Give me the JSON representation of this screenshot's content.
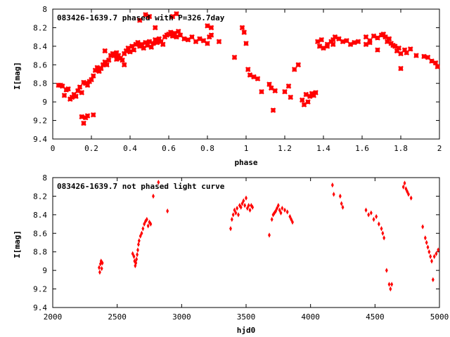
{
  "chart_data": [
    {
      "type": "scatter",
      "title": "083426-1639.7 phased with P=326.7day",
      "xlabel": "phase",
      "ylabel": "I[mag]",
      "xlim": [
        0,
        2
      ],
      "ylim": [
        9.4,
        8
      ],
      "y_inverted": true,
      "x_ticks": [
        "0",
        "0.2",
        "0.4",
        "0.6",
        "0.8",
        "1",
        "1.2",
        "1.4",
        "1.6",
        "1.8",
        "2"
      ],
      "y_ticks": [
        "8",
        "8.2",
        "8.4",
        "8.6",
        "8.8",
        "9",
        "9.2",
        "9.4"
      ],
      "marker": "cross",
      "color": "#ff0000",
      "points": [
        [
          0.03,
          8.82
        ],
        [
          0.04,
          8.82
        ],
        [
          0.05,
          8.83
        ],
        [
          0.06,
          8.93
        ],
        [
          0.07,
          8.87
        ],
        [
          0.08,
          8.86
        ],
        [
          0.09,
          8.97
        ],
        [
          0.1,
          8.95
        ],
        [
          0.11,
          8.92
        ],
        [
          0.12,
          8.94
        ],
        [
          0.13,
          8.88
        ],
        [
          0.14,
          8.84
        ],
        [
          0.15,
          8.9
        ],
        [
          0.16,
          8.79
        ],
        [
          0.17,
          8.8
        ],
        [
          0.18,
          8.82
        ],
        [
          0.19,
          8.78
        ],
        [
          0.2,
          8.76
        ],
        [
          0.21,
          8.72
        ],
        [
          0.22,
          8.66
        ],
        [
          0.23,
          8.63
        ],
        [
          0.24,
          8.67
        ],
        [
          0.25,
          8.64
        ],
        [
          0.26,
          8.6
        ],
        [
          0.27,
          8.57
        ],
        [
          0.28,
          8.6
        ],
        [
          0.29,
          8.55
        ],
        [
          0.3,
          8.5
        ],
        [
          0.31,
          8.48
        ],
        [
          0.32,
          8.5
        ],
        [
          0.33,
          8.47
        ],
        [
          0.34,
          8.5
        ],
        [
          0.35,
          8.53
        ],
        [
          0.36,
          8.55
        ],
        [
          0.37,
          8.48
        ],
        [
          0.38,
          8.45
        ],
        [
          0.39,
          8.42
        ],
        [
          0.4,
          8.46
        ],
        [
          0.41,
          8.4
        ],
        [
          0.42,
          8.44
        ],
        [
          0.43,
          8.38
        ],
        [
          0.44,
          8.36
        ],
        [
          0.45,
          8.4
        ],
        [
          0.46,
          8.38
        ],
        [
          0.47,
          8.42
        ],
        [
          0.48,
          8.36
        ],
        [
          0.49,
          8.39
        ],
        [
          0.5,
          8.35
        ],
        [
          0.51,
          8.41
        ],
        [
          0.52,
          8.37
        ],
        [
          0.53,
          8.33
        ],
        [
          0.54,
          8.36
        ],
        [
          0.55,
          8.32
        ],
        [
          0.56,
          8.35
        ],
        [
          0.57,
          8.38
        ],
        [
          0.58,
          8.3
        ],
        [
          0.59,
          8.28
        ],
        [
          0.6,
          8.27
        ],
        [
          0.61,
          8.25
        ],
        [
          0.62,
          8.29
        ],
        [
          0.63,
          8.26
        ],
        [
          0.64,
          8.3
        ],
        [
          0.65,
          8.24
        ],
        [
          0.66,
          8.28
        ],
        [
          0.68,
          8.32
        ],
        [
          0.7,
          8.33
        ],
        [
          0.72,
          8.3
        ],
        [
          0.74,
          8.35
        ],
        [
          0.76,
          8.32
        ],
        [
          0.78,
          8.34
        ],
        [
          0.8,
          8.37
        ],
        [
          0.81,
          8.3
        ],
        [
          0.82,
          8.28
        ],
        [
          0.86,
          8.35
        ],
        [
          0.45,
          8.12
        ],
        [
          0.48,
          8.06
        ],
        [
          0.5,
          8.08
        ],
        [
          0.53,
          8.2
        ],
        [
          0.62,
          8.08
        ],
        [
          0.64,
          8.05
        ],
        [
          0.8,
          8.18
        ],
        [
          0.82,
          8.2
        ],
        [
          0.15,
          9.16
        ],
        [
          0.16,
          9.23
        ],
        [
          0.17,
          9.17
        ],
        [
          0.18,
          9.15
        ],
        [
          0.21,
          9.14
        ],
        [
          0.27,
          8.45
        ],
        [
          0.33,
          8.54
        ],
        [
          0.37,
          8.6
        ],
        [
          0.94,
          8.52
        ],
        [
          0.98,
          8.2
        ],
        [
          0.99,
          8.25
        ],
        [
          1.0,
          8.37
        ],
        [
          1.01,
          8.65
        ],
        [
          1.02,
          8.71
        ],
        [
          1.04,
          8.73
        ],
        [
          1.06,
          8.75
        ],
        [
          1.08,
          8.89
        ],
        [
          1.12,
          8.81
        ],
        [
          1.13,
          8.85
        ],
        [
          1.14,
          9.09
        ],
        [
          1.15,
          8.88
        ],
        [
          1.2,
          8.89
        ],
        [
          1.22,
          8.83
        ],
        [
          1.23,
          8.95
        ],
        [
          1.25,
          8.65
        ],
        [
          1.27,
          8.6
        ],
        [
          1.29,
          8.98
        ],
        [
          1.3,
          9.03
        ],
        [
          1.31,
          8.92
        ],
        [
          1.32,
          9.0
        ],
        [
          1.33,
          8.94
        ],
        [
          1.34,
          8.91
        ],
        [
          1.35,
          8.93
        ],
        [
          1.36,
          8.9
        ],
        [
          1.37,
          8.35
        ],
        [
          1.38,
          8.4
        ],
        [
          1.39,
          8.33
        ],
        [
          1.4,
          8.42
        ],
        [
          1.42,
          8.38
        ],
        [
          1.44,
          8.35
        ],
        [
          1.45,
          8.33
        ],
        [
          1.46,
          8.3
        ],
        [
          1.48,
          8.32
        ],
        [
          1.5,
          8.35
        ],
        [
          1.52,
          8.34
        ],
        [
          1.54,
          8.38
        ],
        [
          1.56,
          8.36
        ],
        [
          1.58,
          8.35
        ],
        [
          1.62,
          8.3
        ],
        [
          1.64,
          8.34
        ],
        [
          1.66,
          8.29
        ],
        [
          1.68,
          8.31
        ],
        [
          1.7,
          8.28
        ],
        [
          1.71,
          8.27
        ],
        [
          1.72,
          8.3
        ],
        [
          1.73,
          8.35
        ],
        [
          1.74,
          8.32
        ],
        [
          1.75,
          8.37
        ],
        [
          1.77,
          8.4
        ],
        [
          1.78,
          8.45
        ],
        [
          1.79,
          8.42
        ],
        [
          1.8,
          8.48
        ],
        [
          1.82,
          8.44
        ],
        [
          1.83,
          8.47
        ],
        [
          1.85,
          8.43
        ],
        [
          1.88,
          8.5
        ],
        [
          1.92,
          8.51
        ],
        [
          1.94,
          8.52
        ],
        [
          1.96,
          8.56
        ],
        [
          1.98,
          8.58
        ],
        [
          1.99,
          8.62
        ],
        [
          1.62,
          8.38
        ],
        [
          1.64,
          8.36
        ],
        [
          1.68,
          8.44
        ],
        [
          1.76,
          8.39
        ],
        [
          1.8,
          8.64
        ],
        [
          1.42,
          8.4
        ],
        [
          1.45,
          8.38
        ]
      ]
    },
    {
      "type": "scatter",
      "title": "083426-1639.7 not phased light curve",
      "xlabel": "hjd0",
      "ylabel": "I[mag]",
      "xlim": [
        2000,
        5000
      ],
      "ylim": [
        9.4,
        8
      ],
      "y_inverted": true,
      "x_ticks": [
        "2000",
        "2500",
        "3000",
        "3500",
        "4000",
        "4500",
        "5000"
      ],
      "y_ticks": [
        "8",
        "8.2",
        "8.4",
        "8.6",
        "8.8",
        "9",
        "9.2",
        "9.4"
      ],
      "marker": "dot",
      "color": "#ff0000",
      "points": [
        [
          2360,
          8.97
        ],
        [
          2365,
          9.02
        ],
        [
          2370,
          8.93
        ],
        [
          2375,
          8.9
        ],
        [
          2380,
          8.98
        ],
        [
          2385,
          8.92
        ],
        [
          2620,
          8.82
        ],
        [
          2630,
          8.85
        ],
        [
          2635,
          8.9
        ],
        [
          2640,
          8.95
        ],
        [
          2645,
          8.92
        ],
        [
          2650,
          8.88
        ],
        [
          2655,
          8.83
        ],
        [
          2660,
          8.78
        ],
        [
          2665,
          8.72
        ],
        [
          2670,
          8.68
        ],
        [
          2680,
          8.63
        ],
        [
          2690,
          8.6
        ],
        [
          2700,
          8.55
        ],
        [
          2710,
          8.5
        ],
        [
          2720,
          8.47
        ],
        [
          2730,
          8.45
        ],
        [
          2740,
          8.52
        ],
        [
          2750,
          8.48
        ],
        [
          2760,
          8.5
        ],
        [
          2780,
          8.2
        ],
        [
          2820,
          8.05
        ],
        [
          2890,
          8.36
        ],
        [
          3380,
          8.55
        ],
        [
          3390,
          8.45
        ],
        [
          3400,
          8.4
        ],
        [
          3410,
          8.35
        ],
        [
          3420,
          8.38
        ],
        [
          3430,
          8.33
        ],
        [
          3440,
          8.4
        ],
        [
          3450,
          8.3
        ],
        [
          3460,
          8.32
        ],
        [
          3470,
          8.28
        ],
        [
          3480,
          8.25
        ],
        [
          3490,
          8.3
        ],
        [
          3500,
          8.22
        ],
        [
          3510,
          8.33
        ],
        [
          3520,
          8.3
        ],
        [
          3530,
          8.35
        ],
        [
          3540,
          8.3
        ],
        [
          3550,
          8.32
        ],
        [
          3680,
          8.62
        ],
        [
          3700,
          8.45
        ],
        [
          3710,
          8.4
        ],
        [
          3720,
          8.38
        ],
        [
          3730,
          8.36
        ],
        [
          3740,
          8.33
        ],
        [
          3750,
          8.3
        ],
        [
          3760,
          8.35
        ],
        [
          3770,
          8.38
        ],
        [
          3780,
          8.33
        ],
        [
          3800,
          8.35
        ],
        [
          3820,
          8.37
        ],
        [
          3840,
          8.42
        ],
        [
          3850,
          8.45
        ],
        [
          3860,
          8.48
        ],
        [
          4170,
          8.08
        ],
        [
          4180,
          8.18
        ],
        [
          4230,
          8.2
        ],
        [
          4240,
          8.28
        ],
        [
          4250,
          8.32
        ],
        [
          4430,
          8.35
        ],
        [
          4450,
          8.4
        ],
        [
          4470,
          8.38
        ],
        [
          4490,
          8.45
        ],
        [
          4510,
          8.42
        ],
        [
          4530,
          8.5
        ],
        [
          4550,
          8.55
        ],
        [
          4560,
          8.6
        ],
        [
          4570,
          8.65
        ],
        [
          4590,
          9.0
        ],
        [
          4610,
          9.15
        ],
        [
          4620,
          9.2
        ],
        [
          4630,
          9.15
        ],
        [
          4720,
          8.1
        ],
        [
          4730,
          8.06
        ],
        [
          4740,
          8.12
        ],
        [
          4750,
          8.15
        ],
        [
          4760,
          8.18
        ],
        [
          4780,
          8.22
        ],
        [
          4870,
          8.53
        ],
        [
          4890,
          8.65
        ],
        [
          4900,
          8.7
        ],
        [
          4910,
          8.75
        ],
        [
          4920,
          8.8
        ],
        [
          4930,
          8.85
        ],
        [
          4940,
          8.9
        ],
        [
          4950,
          9.1
        ],
        [
          4960,
          8.85
        ],
        [
          4975,
          8.82
        ],
        [
          4990,
          8.78
        ]
      ]
    }
  ]
}
